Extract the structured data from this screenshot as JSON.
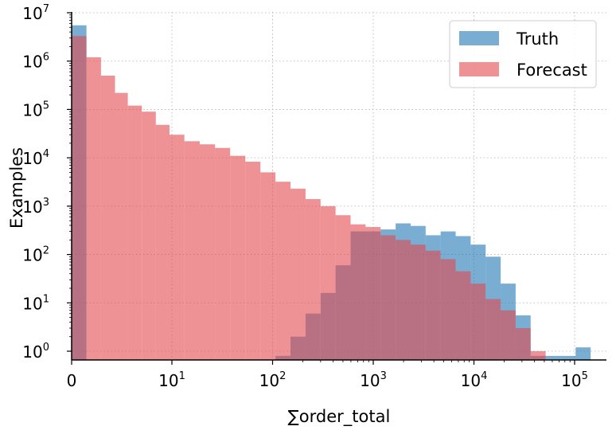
{
  "chart_data": {
    "type": "bar",
    "xlabel": "∑order_total",
    "ylabel": "Examples",
    "x_scale": "symlog",
    "y_scale": "log",
    "xlim": [
      0,
      200000
    ],
    "ylim": [
      0.5,
      10000000
    ],
    "x_ticks": [
      {
        "base": "0",
        "exp": ""
      },
      {
        "base": "10",
        "exp": "1"
      },
      {
        "base": "10",
        "exp": "2"
      },
      {
        "base": "10",
        "exp": "3"
      },
      {
        "base": "10",
        "exp": "4"
      },
      {
        "base": "10",
        "exp": "5"
      }
    ],
    "y_ticks": [
      {
        "base": "10",
        "exp": "0"
      },
      {
        "base": "10",
        "exp": "1"
      },
      {
        "base": "10",
        "exp": "2"
      },
      {
        "base": "10",
        "exp": "3"
      },
      {
        "base": "10",
        "exp": "4"
      },
      {
        "base": "10",
        "exp": "5"
      },
      {
        "base": "10",
        "exp": "6"
      },
      {
        "base": "10",
        "exp": "7"
      }
    ],
    "grid": true,
    "legend_position": "top-right",
    "colors": {
      "Truth": "#1f77b4",
      "Forecast": "#e24a4f"
    },
    "bin_edges": [
      0,
      1.1,
      1.6,
      2.3,
      3.2,
      4.6,
      6.6,
      9.4,
      13.3,
      18.9,
      26.8,
      37.9,
      53.6,
      75.7,
      106.8,
      150.7,
      212.5,
      299.6,
      422.4,
      595.5,
      839.5,
      1183,
      1668,
      2351,
      3314,
      4670,
      6582,
      9276,
      13072,
      18422,
      25960,
      36582,
      51551,
      72644,
      102366,
      144248
    ],
    "series": [
      {
        "name": "Truth",
        "values": [
          5500000,
          0,
          0,
          0,
          0,
          0,
          0,
          0,
          0,
          0,
          0,
          0,
          0,
          0,
          0.8,
          2.0,
          6.0,
          16.0,
          60.0,
          300.0,
          300.0,
          330.0,
          440.0,
          390.0,
          250.0,
          300.0,
          240.0,
          160.0,
          90.0,
          25.0,
          5.5,
          0.8,
          0.8,
          0.8,
          1.2
        ]
      },
      {
        "name": "Forecast",
        "values": [
          3300000,
          1200000,
          500000,
          220000,
          120000,
          90000,
          48000,
          30000,
          22000,
          19000,
          16000,
          11000,
          8300,
          5000,
          3200,
          2300,
          1400,
          1000,
          650,
          420,
          370,
          250,
          200,
          160,
          120,
          80,
          45,
          25,
          12,
          7.0,
          3.0,
          1.0,
          0.6,
          0.6,
          0.6
        ]
      }
    ]
  }
}
